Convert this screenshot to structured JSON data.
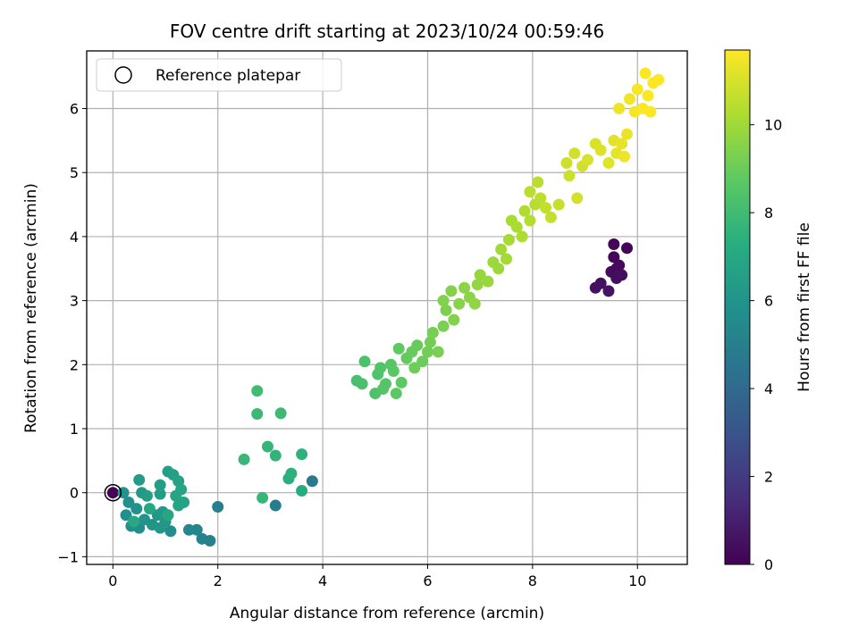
{
  "chart_data": {
    "type": "scatter",
    "title": "FOV centre drift starting at 2023/10/24 00:59:46",
    "xlabel": "Angular distance from reference (arcmin)",
    "ylabel": "Rotation from reference (arcmin)",
    "colorbar_label": "Hours from first FF file",
    "colormap": "viridis",
    "xlim": [
      -0.5,
      10.95
    ],
    "ylim": [
      -1.12,
      6.9
    ],
    "clim": [
      0,
      11.7
    ],
    "xticks": [
      0,
      2,
      4,
      6,
      8,
      10
    ],
    "yticks": [
      -1,
      0,
      1,
      2,
      3,
      4,
      5,
      6
    ],
    "cticks": [
      0,
      2,
      4,
      6,
      8,
      10
    ],
    "grid": true,
    "legend": {
      "placement": "top-left",
      "entries": [
        "Reference platepar"
      ]
    },
    "reference_point": {
      "x": 0,
      "y": 0
    },
    "points": [
      [
        0.0,
        0.0,
        0.05
      ],
      [
        9.55,
        3.88,
        0.1
      ],
      [
        9.8,
        3.82,
        0.15
      ],
      [
        9.55,
        3.68,
        0.2
      ],
      [
        9.65,
        3.55,
        0.25
      ],
      [
        9.6,
        3.5,
        0.3
      ],
      [
        9.5,
        3.45,
        0.35
      ],
      [
        9.6,
        3.35,
        0.4
      ],
      [
        9.7,
        3.4,
        0.45
      ],
      [
        9.3,
        3.27,
        0.5
      ],
      [
        9.2,
        3.2,
        0.55
      ],
      [
        9.45,
        3.15,
        0.6
      ],
      [
        3.8,
        0.18,
        4.7
      ],
      [
        3.1,
        -0.2,
        4.9
      ],
      [
        2.0,
        -0.22,
        5.0
      ],
      [
        1.85,
        -0.75,
        5.1
      ],
      [
        1.7,
        -0.72,
        5.2
      ],
      [
        1.6,
        -0.58,
        5.3
      ],
      [
        1.45,
        -0.58,
        5.4
      ],
      [
        1.1,
        -0.6,
        5.6
      ],
      [
        0.5,
        -0.55,
        5.7
      ],
      [
        0.35,
        -0.52,
        5.75
      ],
      [
        0.25,
        -0.35,
        5.8
      ],
      [
        0.3,
        -0.15,
        5.85
      ],
      [
        0.2,
        0.0,
        5.9
      ],
      [
        0.45,
        -0.25,
        5.95
      ],
      [
        0.6,
        -0.42,
        6.0
      ],
      [
        0.75,
        -0.5,
        6.05
      ],
      [
        0.9,
        -0.55,
        6.1
      ],
      [
        0.85,
        -0.35,
        6.15
      ],
      [
        1.0,
        -0.45,
        6.2
      ],
      [
        0.95,
        -0.3,
        6.25
      ],
      [
        0.55,
        0.0,
        6.3
      ],
      [
        0.5,
        0.2,
        6.35
      ],
      [
        0.65,
        -0.05,
        6.4
      ],
      [
        0.9,
        -0.02,
        6.45
      ],
      [
        0.9,
        0.12,
        6.5
      ],
      [
        1.05,
        0.33,
        6.55
      ],
      [
        1.15,
        0.28,
        6.6
      ],
      [
        1.25,
        0.18,
        6.65
      ],
      [
        1.35,
        -0.15,
        6.7
      ],
      [
        1.25,
        -0.2,
        6.75
      ],
      [
        1.2,
        -0.05,
        6.8
      ],
      [
        1.3,
        0.05,
        6.85
      ],
      [
        1.05,
        -0.35,
        6.9
      ],
      [
        0.7,
        -0.25,
        6.95
      ],
      [
        0.4,
        -0.45,
        7.0
      ],
      [
        3.6,
        0.03,
        7.2
      ],
      [
        3.35,
        0.22,
        7.3
      ],
      [
        3.4,
        0.3,
        7.4
      ],
      [
        3.6,
        0.6,
        7.5
      ],
      [
        3.1,
        0.58,
        7.6
      ],
      [
        2.95,
        0.72,
        7.7
      ],
      [
        2.85,
        -0.08,
        7.75
      ],
      [
        2.5,
        0.52,
        7.8
      ],
      [
        2.75,
        1.23,
        7.85
      ],
      [
        3.2,
        1.24,
        7.9
      ],
      [
        2.75,
        1.59,
        8.0
      ],
      [
        4.65,
        1.75,
        8.2
      ],
      [
        4.75,
        1.7,
        8.25
      ],
      [
        4.8,
        2.05,
        8.3
      ],
      [
        5.0,
        1.55,
        8.35
      ],
      [
        5.05,
        1.85,
        8.4
      ],
      [
        5.1,
        1.95,
        8.45
      ],
      [
        5.15,
        1.62,
        8.5
      ],
      [
        5.2,
        1.7,
        8.55
      ],
      [
        5.3,
        2.0,
        8.6
      ],
      [
        5.35,
        1.9,
        8.65
      ],
      [
        5.4,
        1.55,
        8.7
      ],
      [
        5.5,
        1.72,
        8.75
      ],
      [
        5.45,
        2.25,
        8.8
      ],
      [
        5.6,
        2.1,
        8.85
      ],
      [
        5.7,
        2.2,
        8.9
      ],
      [
        5.8,
        2.3,
        8.95
      ],
      [
        5.9,
        2.05,
        9.0
      ],
      [
        5.75,
        1.95,
        9.05
      ],
      [
        6.0,
        2.2,
        9.1
      ],
      [
        6.05,
        2.35,
        9.15
      ],
      [
        6.1,
        2.5,
        9.2
      ],
      [
        6.2,
        2.2,
        9.25
      ],
      [
        6.3,
        2.6,
        9.3
      ],
      [
        6.35,
        2.85,
        9.35
      ],
      [
        6.3,
        3.0,
        9.4
      ],
      [
        6.5,
        2.7,
        9.45
      ],
      [
        6.45,
        3.15,
        9.5
      ],
      [
        6.6,
        2.95,
        9.55
      ],
      [
        6.7,
        3.2,
        9.6
      ],
      [
        6.8,
        3.05,
        9.65
      ],
      [
        6.9,
        2.95,
        9.7
      ],
      [
        6.95,
        3.25,
        9.75
      ],
      [
        7.0,
        3.4,
        9.8
      ],
      [
        7.15,
        3.3,
        9.85
      ],
      [
        7.25,
        3.6,
        9.9
      ],
      [
        7.35,
        3.5,
        9.95
      ],
      [
        7.4,
        3.8,
        10.0
      ],
      [
        7.5,
        3.65,
        10.05
      ],
      [
        7.55,
        3.95,
        10.1
      ],
      [
        7.6,
        4.25,
        10.15
      ],
      [
        7.7,
        4.15,
        10.2
      ],
      [
        7.8,
        4.0,
        10.25
      ],
      [
        7.85,
        4.4,
        10.3
      ],
      [
        7.95,
        4.25,
        10.35
      ],
      [
        8.05,
        4.5,
        10.4
      ],
      [
        7.95,
        4.7,
        10.45
      ],
      [
        8.1,
        4.85,
        10.5
      ],
      [
        8.15,
        4.6,
        10.55
      ],
      [
        8.25,
        4.45,
        10.6
      ],
      [
        8.35,
        4.3,
        10.65
      ],
      [
        8.5,
        4.5,
        10.7
      ],
      [
        8.7,
        4.95,
        10.75
      ],
      [
        8.65,
        5.15,
        10.8
      ],
      [
        8.8,
        5.3,
        10.85
      ],
      [
        8.95,
        5.1,
        10.9
      ],
      [
        8.85,
        4.6,
        10.95
      ],
      [
        9.05,
        5.2,
        11.0
      ],
      [
        9.2,
        5.45,
        11.05
      ],
      [
        9.3,
        5.35,
        11.1
      ],
      [
        9.45,
        5.15,
        11.15
      ],
      [
        9.55,
        5.5,
        11.2
      ],
      [
        9.6,
        5.3,
        11.25
      ],
      [
        9.7,
        5.45,
        11.3
      ],
      [
        9.8,
        5.6,
        11.35
      ],
      [
        9.75,
        5.25,
        11.4
      ],
      [
        9.65,
        6.0,
        11.45
      ],
      [
        9.85,
        6.15,
        11.5
      ],
      [
        9.95,
        5.95,
        11.55
      ],
      [
        10.0,
        6.3,
        11.6
      ],
      [
        10.1,
        6.0,
        11.65
      ],
      [
        10.2,
        6.2,
        11.68
      ],
      [
        10.3,
        6.4,
        11.7
      ],
      [
        10.4,
        6.45,
        11.7
      ],
      [
        10.15,
        6.55,
        11.7
      ],
      [
        10.25,
        5.95,
        11.7
      ]
    ]
  }
}
